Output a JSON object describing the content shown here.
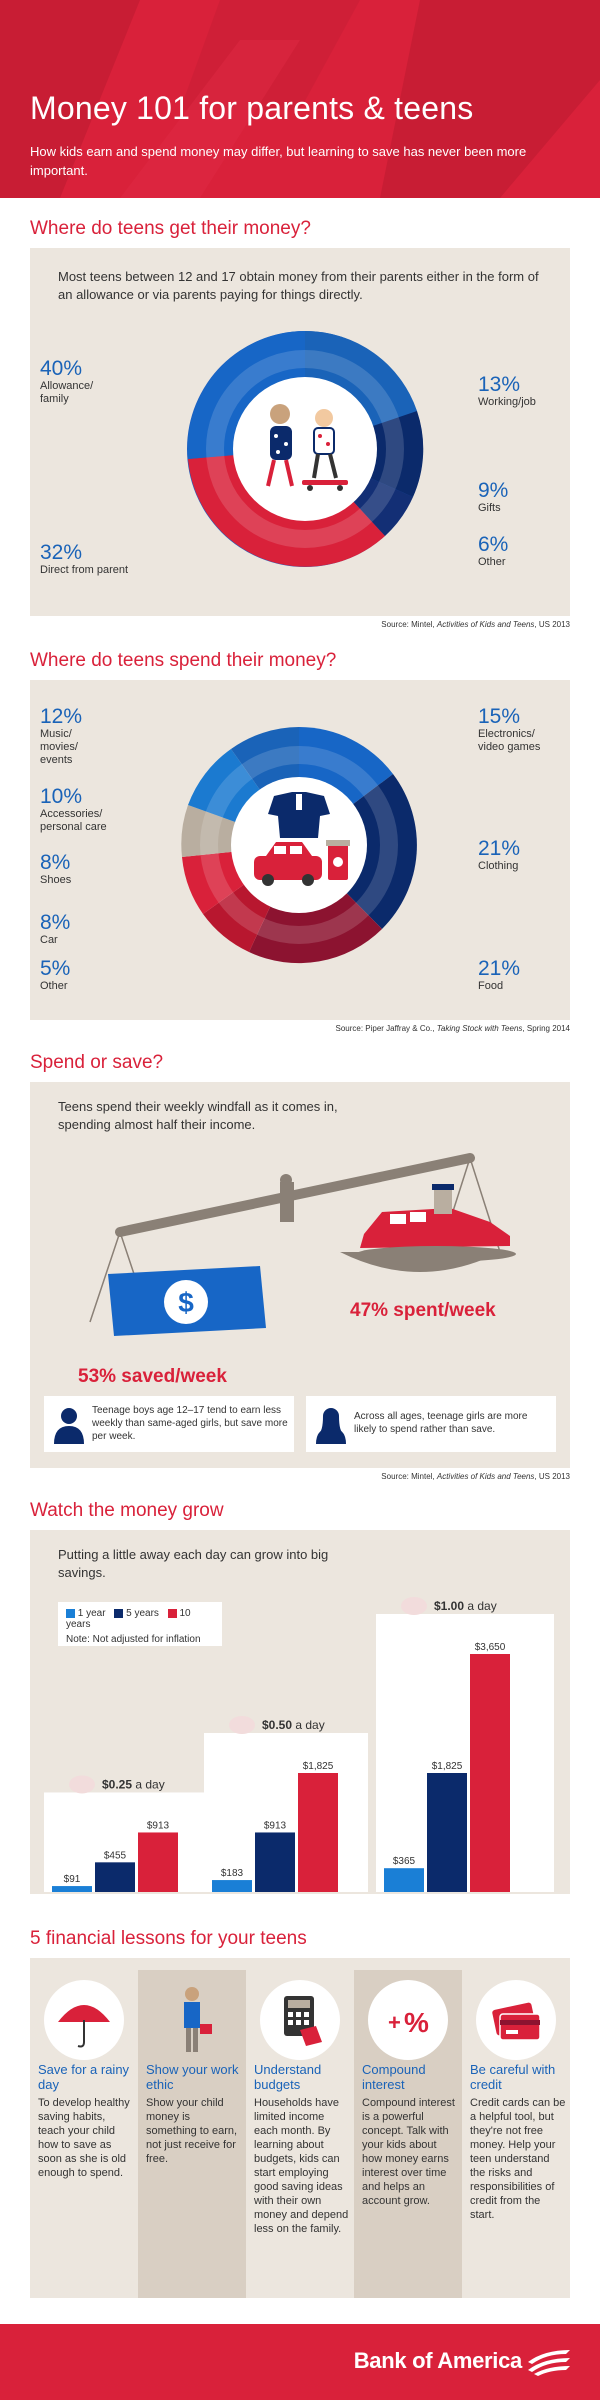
{
  "header": {
    "title": "Money 101 for parents & teens",
    "subtitle": "How kids earn and spend money may differ, but learning to save has never been more important."
  },
  "income": {
    "title": "Where do teens get their money?",
    "intro": "Most teens between 12 and 17 obtain money from their parents either in the form of an allowance or via parents paying for things directly.",
    "items": [
      {
        "pct": "40%",
        "label": "Allowance/ family"
      },
      {
        "pct": "32%",
        "label": "Direct from parent"
      },
      {
        "pct": "13%",
        "label": "Working/job"
      },
      {
        "pct": "9%",
        "label": "Gifts"
      },
      {
        "pct": "6%",
        "label": "Other"
      }
    ],
    "source_prefix": "Source: Mintel, ",
    "source_title": "Activities of Kids and Teens",
    "source_suffix": ", US 2013"
  },
  "spending": {
    "title": "Where do teens spend their money?",
    "items": [
      {
        "pct": "12%",
        "label": "Music/ movies/ events"
      },
      {
        "pct": "10%",
        "label": "Accessories/ personal care"
      },
      {
        "pct": "8%",
        "label": "Shoes"
      },
      {
        "pct": "8%",
        "label": "Car"
      },
      {
        "pct": "5%",
        "label": "Other"
      },
      {
        "pct": "15%",
        "label": "Electronics/ video games"
      },
      {
        "pct": "21%",
        "label": "Clothing"
      },
      {
        "pct": "21%",
        "label": "Food"
      }
    ],
    "source_prefix": "Source: Piper Jaffray & Co., ",
    "source_title": "Taking Stock with Teens",
    "source_suffix": ", Spring 2014"
  },
  "spend_save": {
    "title": "Spend or save?",
    "intro": "Teens spend their weekly windfall as it comes in, spending almost half their income.",
    "saved": "53% saved/week",
    "spent": "47% spent/week",
    "note_boys": "Teenage boys age 12–17 tend to earn less weekly than same-aged girls, but save more per week.",
    "note_girls": "Across all ages, teenage girls are more likely to spend rather than save.",
    "source_prefix": "Source: Mintel, ",
    "source_title": "Activities of Kids and Teens",
    "source_suffix": ", US 2013"
  },
  "grow": {
    "title": "Watch the money grow",
    "intro": "Putting a little away each day can grow into big savings.",
    "legend": [
      "1 year",
      "5 years",
      "10 years"
    ],
    "note": "Note: Not adjusted for inflation",
    "colors": {
      "year1": "#1a7fd6",
      "year5": "#0b2a6b",
      "year10": "#d9213a"
    }
  },
  "chart_data": {
    "type": "bar",
    "categories": [
      "$0.25 a day",
      "$0.50 a day",
      "$1.00 a day"
    ],
    "series": [
      {
        "name": "1 year",
        "values": [
          91,
          183,
          365
        ],
        "labels": [
          "$91",
          "$183",
          "$365"
        ]
      },
      {
        "name": "5 years",
        "values": [
          455,
          913,
          1825
        ],
        "labels": [
          "$455",
          "$913",
          "$1,825"
        ]
      },
      {
        "name": "10 years",
        "values": [
          913,
          1825,
          3650
        ],
        "labels": [
          "$913",
          "$1,825",
          "$3,650"
        ]
      }
    ],
    "title": "Watch the money grow",
    "xlabel": "",
    "ylabel": "",
    "ylim": [
      0,
      3650
    ]
  },
  "lessons": {
    "title": "5 financial lessons for your teens",
    "items": [
      {
        "title": "Save for a rainy day",
        "body": "To develop healthy saving habits, teach your child how to save as soon as she is old enough to spend.",
        "icon": "umbrella-icon"
      },
      {
        "title": "Show your work ethic",
        "body": "Show your child money is something to earn, not just receive for free.",
        "icon": "worker-icon"
      },
      {
        "title": "Understand budgets",
        "body": "Households have limited income each month. By learning about budgets, kids can start employing good saving ideas with their own money and depend less on the family.",
        "icon": "calculator-icon"
      },
      {
        "title": "Compound interest",
        "body": "Compound interest is a powerful concept. Talk with your kids about how money earns interest over time and helps an account grow.",
        "icon": "percent-icon"
      },
      {
        "title": "Be careful with credit",
        "body": "Credit cards can be a helpful tool, but they're not free money. Help your teen understand the risks and responsibilities of credit from the start.",
        "icon": "credit-card-icon"
      }
    ]
  },
  "footer": {
    "brand": "Bank of America"
  }
}
